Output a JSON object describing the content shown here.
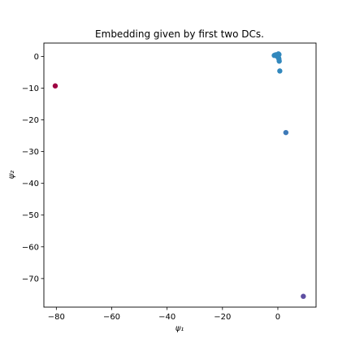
{
  "chart_data": {
    "type": "scatter",
    "title": "Embedding given by first two DCs.",
    "xlabel": "ψ₁",
    "ylabel": "ψ₂",
    "xlim": [
      -84.5,
      13.8
    ],
    "ylim": [
      -79.0,
      4.2
    ],
    "x_ticks": [
      -80,
      -60,
      -40,
      -20,
      0
    ],
    "y_ticks": [
      0,
      -10,
      -20,
      -30,
      -40,
      -50,
      -60,
      -70
    ],
    "grid": false,
    "legend": "none",
    "points": [
      {
        "x": -80.4,
        "y": -9.3,
        "color": "#9e0142"
      },
      {
        "x": -1.3,
        "y": 0.3,
        "color": "#3288bd"
      },
      {
        "x": -0.8,
        "y": 0.5,
        "color": "#3288bd"
      },
      {
        "x": -0.4,
        "y": 0.1,
        "color": "#3288bd"
      },
      {
        "x": -0.1,
        "y": 0.4,
        "color": "#3288bd"
      },
      {
        "x": 0.2,
        "y": 0.8,
        "color": "#3288bd"
      },
      {
        "x": 0.4,
        "y": 0.6,
        "color": "#3288bd"
      },
      {
        "x": 0.1,
        "y": -0.2,
        "color": "#3288bd"
      },
      {
        "x": 0.3,
        "y": -0.5,
        "color": "#3288bd"
      },
      {
        "x": 0.4,
        "y": -0.9,
        "color": "#3288bd"
      },
      {
        "x": 0.5,
        "y": -1.5,
        "color": "#3288bd"
      },
      {
        "x": 0.7,
        "y": -4.6,
        "color": "#3288bd"
      },
      {
        "x": 2.9,
        "y": -24.0,
        "color": "#3e7ab8"
      },
      {
        "x": 9.2,
        "y": -75.6,
        "color": "#5e4fa2"
      }
    ]
  }
}
